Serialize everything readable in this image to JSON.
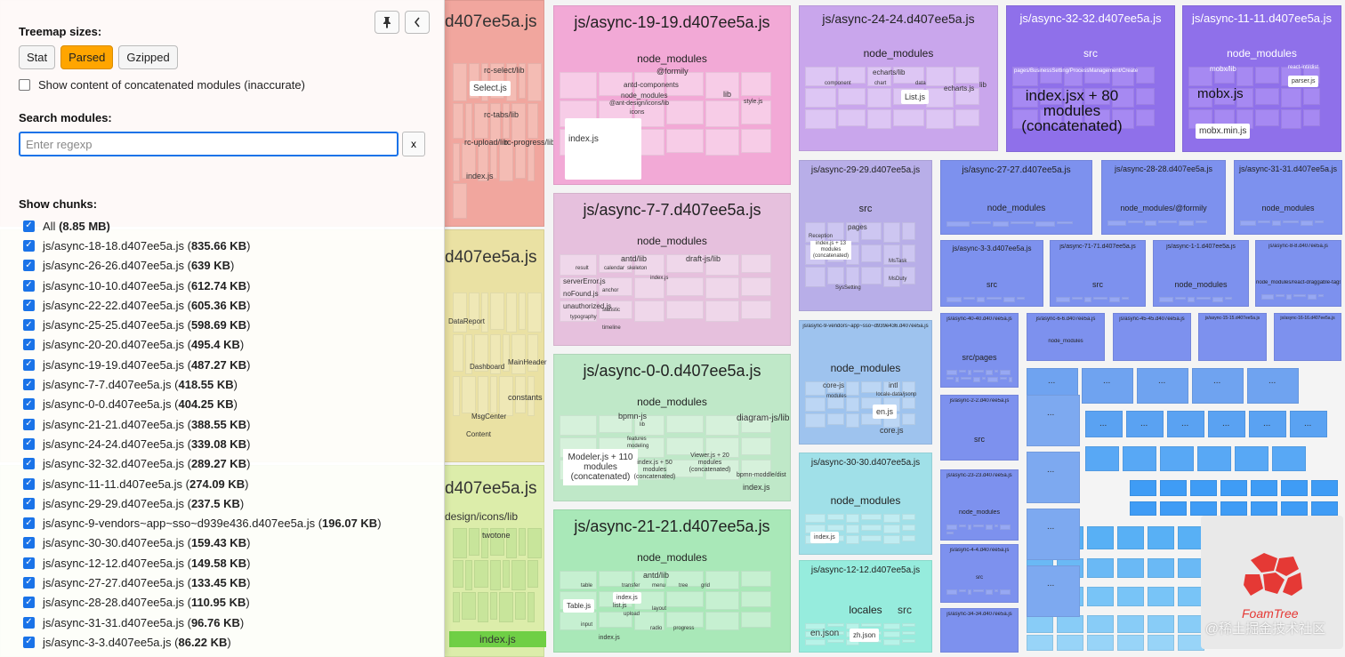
{
  "sidebar": {
    "treemap_sizes_label": "Treemap sizes:",
    "size_buttons": [
      "Stat",
      "Parsed",
      "Gzipped"
    ],
    "active_size": "Parsed",
    "concat_label": "Show content of concatenated modules (inaccurate)",
    "search_label": "Search modules:",
    "search_placeholder": "Enter regexp",
    "search_value": "",
    "clear_label": "x",
    "show_chunks_label": "Show chunks:",
    "all_label": "All",
    "all_size": "(8.85 MB)",
    "chunks": [
      {
        "name": "js/async-18-18.d407ee5a.js",
        "size": "835.66 KB"
      },
      {
        "name": "js/async-26-26.d407ee5a.js",
        "size": "639 KB"
      },
      {
        "name": "js/async-10-10.d407ee5a.js",
        "size": "612.74 KB"
      },
      {
        "name": "js/async-22-22.d407ee5a.js",
        "size": "605.36 KB"
      },
      {
        "name": "js/async-25-25.d407ee5a.js",
        "size": "598.69 KB"
      },
      {
        "name": "js/async-20-20.d407ee5a.js",
        "size": "495.4 KB"
      },
      {
        "name": "js/async-19-19.d407ee5a.js",
        "size": "487.27 KB"
      },
      {
        "name": "js/async-7-7.d407ee5a.js",
        "size": "418.55 KB"
      },
      {
        "name": "js/async-0-0.d407ee5a.js",
        "size": "404.25 KB"
      },
      {
        "name": "js/async-21-21.d407ee5a.js",
        "size": "388.55 KB"
      },
      {
        "name": "js/async-24-24.d407ee5a.js",
        "size": "339.08 KB"
      },
      {
        "name": "js/async-32-32.d407ee5a.js",
        "size": "289.27 KB"
      },
      {
        "name": "js/async-11-11.d407ee5a.js",
        "size": "274.09 KB"
      },
      {
        "name": "js/async-29-29.d407ee5a.js",
        "size": "237.5 KB"
      },
      {
        "name": "js/async-9-vendors~app~sso~d939e436.d407ee5a.js",
        "size": "196.07 KB"
      },
      {
        "name": "js/async-30-30.d407ee5a.js",
        "size": "159.43 KB"
      },
      {
        "name": "js/async-12-12.d407ee5a.js",
        "size": "149.58 KB"
      },
      {
        "name": "js/async-27-27.d407ee5a.js",
        "size": "133.45 KB"
      },
      {
        "name": "js/async-28-28.d407ee5a.js",
        "size": "110.95 KB"
      },
      {
        "name": "js/async-31-31.d407ee5a.js",
        "size": "96.76 KB"
      },
      {
        "name": "js/async-3-3.d407ee5a.js",
        "size": "86.22 KB"
      }
    ]
  },
  "icons": {
    "pin": "pin-icon",
    "collapse": "chevron-left-icon",
    "check": "check-icon"
  },
  "colors": {
    "accent": "#1a73e8",
    "active_button": "#ffa500"
  },
  "treemap": {
    "partial_labels": [
      "d407ee5a.js",
      "d407ee5a.js",
      "d407ee5a.js",
      "design/icons/lib",
      "rc-select/lib",
      "Select.js",
      "rc-tabs/lib",
      "rc-upload/lib",
      "rc-progress/lib",
      "index.js",
      "twotone",
      "index.js",
      "constants",
      "DataReport",
      "Dashboard",
      "MainHeader",
      "MsgCenter",
      "Content"
    ],
    "chunks": [
      {
        "title": "js/async-19-19.d407ee5a.js",
        "sub": "node_modules",
        "labels": [
          "@formily",
          "antd-components",
          "node_modules",
          "@ant-design/icons/lib",
          "icons",
          "index.js",
          "lib",
          "style.js"
        ]
      },
      {
        "title": "js/async-24-24.d407ee5a.js",
        "sub": "node_modules",
        "labels": [
          "echarts/lib",
          "component",
          "chart",
          "data",
          "List.js",
          "echarts.js",
          "lib"
        ]
      },
      {
        "title": "js/async-32-32.d407ee5a.js",
        "sub": "src",
        "labels": [
          "pages/BusinessSetting/ProcessManagement/Create",
          "index.jsx + 80 modules (concatenated)"
        ]
      },
      {
        "title": "js/async-11-11.d407ee5a.js",
        "sub": "node_modules",
        "labels": [
          "mobx/lib",
          "mobx.js",
          "mobx.min.js",
          "parser.js",
          "react-intl/dist"
        ]
      },
      {
        "title": "js/async-7-7.d407ee5a.js",
        "sub": "node_modules",
        "labels": [
          "antd/lib",
          "draft-js/lib",
          "result",
          "calendar",
          "skeleton",
          "serverError.js",
          "noFound.js",
          "unauthorized.js",
          "typography",
          "index.js",
          "anchor",
          "statistic",
          "timeline"
        ]
      },
      {
        "title": "js/async-0-0.d407ee5a.js",
        "sub": "node_modules",
        "labels": [
          "bpmn-js",
          "lib",
          "features",
          "modeling",
          "Modeler.js + 110 modules (concatenated)",
          "index.js + 50 modules (concatenated)",
          "Viewer.js + 20 modules (concatenated)",
          "diagram-js/lib",
          "bpmn-moddle/dist",
          "index.js"
        ]
      },
      {
        "title": "js/async-21-21.d407ee5a.js",
        "sub": "node_modules",
        "labels": [
          "antd/lib",
          "table",
          "transfer",
          "menu",
          "tree",
          "grid",
          "Table.js",
          "index.js",
          "list.js",
          "layout",
          "radio",
          "upload",
          "input",
          "progress",
          "index.js"
        ]
      },
      {
        "title": "js/async-29-29.d407ee5a.js",
        "sub": "src",
        "labels": [
          "pages",
          "Reception",
          "index.js + 13 modules (concatenated)",
          "MsTask",
          "MsDuty",
          "SysSetting"
        ]
      },
      {
        "title": "js/async-9-vendors~app~sso~d939e436.d407ee5a.js",
        "sub": "node_modules",
        "labels": [
          "core-js",
          "modules",
          "intl",
          "locale-data/jsonp",
          "en.js",
          "core.js"
        ]
      },
      {
        "title": "js/async-30-30.d407ee5a.js",
        "sub": "node_modules",
        "labels": [
          "index.js"
        ]
      },
      {
        "title": "js/async-12-12.d407ee5a.js",
        "sub": "locales",
        "labels": [
          "src",
          "en.json",
          "zh.json"
        ]
      },
      {
        "title": "js/async-27-27.d407ee5a.js",
        "sub": "node_modules"
      },
      {
        "title": "js/async-28-28.d407ee5a.js",
        "sub": "node_modules/@formily"
      },
      {
        "title": "js/async-31-31.d407ee5a.js",
        "sub": "node_modules"
      },
      {
        "title": "js/async-3-3.d407ee5a.js",
        "sub": "src"
      },
      {
        "title": "js/async-71-71.d407ee5a.js",
        "sub": "src"
      },
      {
        "title": "js/async-1-1.d407ee5a.js",
        "sub": "node_modules"
      },
      {
        "title": "js/async-8-8.d407ee5a.js",
        "sub": "node_modules/react-draggable-tags"
      },
      {
        "title": "js/async-40-40.d407ee5a.js",
        "sub": "src/pages"
      },
      {
        "title": "js/async-6-6.d407ee5a.js",
        "sub": "node_modules"
      },
      {
        "title": "js/async-45-45.d407ee5a.js",
        "sub": ""
      },
      {
        "title": "js/async-15-15.d407ee5a.js",
        "sub": ""
      },
      {
        "title": "js/async-16-16.d407ee5a.js",
        "sub": ""
      },
      {
        "title": "js/async-2-2.d407ee5a.js",
        "sub": "src"
      },
      {
        "title": "js/async-23-23.d407ee5a.js",
        "sub": "node_modules"
      },
      {
        "title": "js/async-4-4.d407ee5a.js",
        "sub": "src"
      },
      {
        "title": "js/async-34-34.d407ee5a.js",
        "sub": ""
      }
    ],
    "foamtree_label": "FoamTree",
    "watermark": "@稀土掘金技术社区",
    "ellipsis": "..."
  }
}
